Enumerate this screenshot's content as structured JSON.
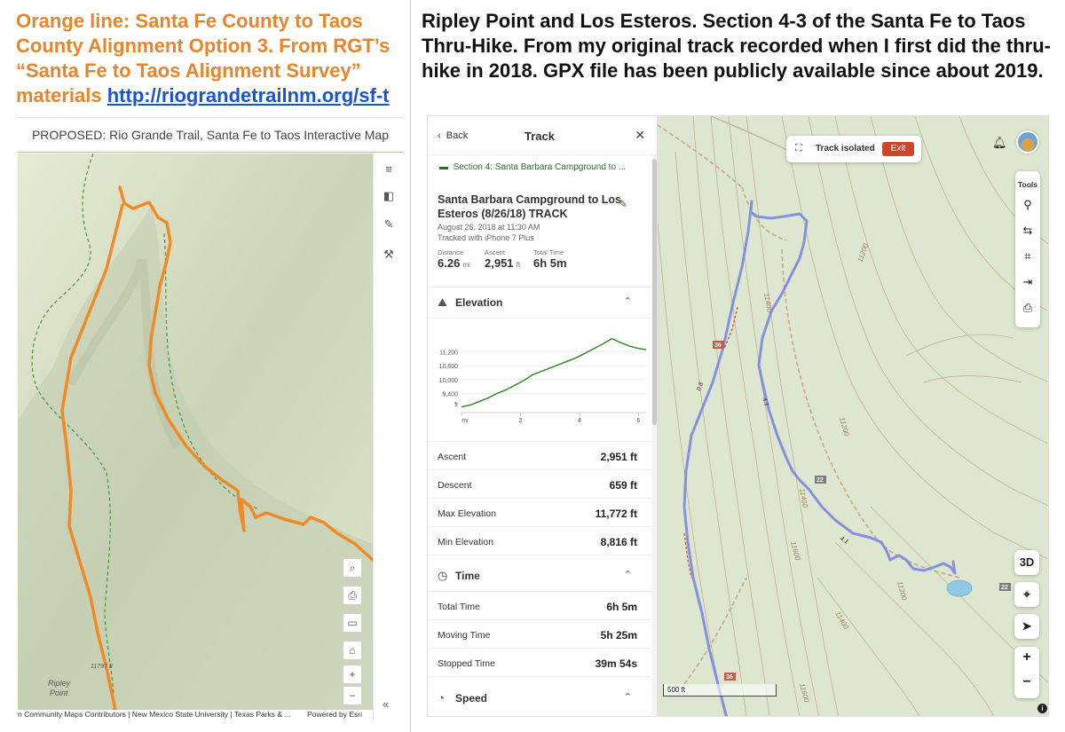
{
  "left_caption": {
    "text": "Orange line: Santa Fe County to Taos County Alignment Option 3. From RGT’s “Santa Fe to Taos Alignment Survey” materials ",
    "link": "http://riograndetrailnm.org/sf-t"
  },
  "right_caption": "Ripley Point and Los Esteros. Section 4-3 of the Santa Fe to Taos Thru-Hike. From my original track recorded when I first did the thru-hike in 2018. GPX file has been publicly available since about 2019.",
  "esri": {
    "title": "PROPOSED: Rio Grande Trail, Santa Fe to Taos Interactive Map",
    "attribution": "n Community Maps Contributors | New Mexico State University | Texas Parks & ...",
    "powered_by": "Powered by Esri",
    "collapse": "«",
    "labels": {
      "ripley": "Ripley",
      "point": "Point",
      "elev": "11797 ft"
    },
    "side_tools": [
      "sliders-icon",
      "layers-icon",
      "measure-icon",
      "wrench-icon"
    ],
    "map_buttons": [
      "search-icon",
      "print-icon",
      "monitor-icon",
      "home-icon",
      "zoom-in-icon",
      "zoom-out-icon"
    ],
    "map_button_glyphs": [
      "⌕",
      "⎙",
      "▭",
      "⌂",
      "+",
      "−"
    ],
    "track_color": "#f08a24"
  },
  "app": {
    "back": "Back",
    "title": "Track",
    "close": "✕",
    "section": "Section 4: Santa Barbara Campground to ...",
    "track_name": "Santa Barbara Campground to Los Esteros (8/26/18) TRACK",
    "date": "August 26, 2018 at 11:30 AM",
    "device": "Tracked with iPhone 7 Plus",
    "stats": [
      {
        "label": "Distance",
        "value": "6.26",
        "unit": "mi"
      },
      {
        "label": "Ascent",
        "value": "2,951",
        "unit": "ft"
      },
      {
        "label": "Total Time",
        "value": "6h 5m",
        "unit": ""
      }
    ],
    "elevation": {
      "heading": "Elevation",
      "rows": [
        {
          "k": "Ascent",
          "v": "2,951 ft"
        },
        {
          "k": "Descent",
          "v": "659 ft"
        },
        {
          "k": "Max Elevation",
          "v": "11,772 ft"
        },
        {
          "k": "Min Elevation",
          "v": "8,816 ft"
        }
      ]
    },
    "time": {
      "heading": "Time",
      "rows": [
        {
          "k": "Total Time",
          "v": "6h 5m"
        },
        {
          "k": "Moving Time",
          "v": "5h 25m"
        },
        {
          "k": "Stopped Time",
          "v": "39m 54s"
        }
      ]
    },
    "speed": {
      "heading": "Speed"
    },
    "map": {
      "track_isolated": "Track isolated",
      "exit": "Exit",
      "tools_label": "Tools",
      "tool_icons": [
        "pin-icon",
        "route-icon",
        "crop-icon",
        "import-icon",
        "print-icon"
      ],
      "tool_glyphs": [
        "⚲",
        "⇆",
        "⌗",
        "⇥",
        "⎙"
      ],
      "btn_3d": "3D",
      "zoom_in": "+",
      "zoom_out": "−",
      "scale": "500 ft",
      "info": "i",
      "contours": [
        "11200",
        "11400",
        "11400",
        "11200",
        "11600",
        "11600",
        "11400",
        "11200"
      ],
      "trail_numbers": [
        "36",
        "36",
        "22",
        "22"
      ],
      "mile_markers": [
        "0.8",
        "4.1",
        "4.1"
      ],
      "track_color": "#7b86e0"
    }
  },
  "chart_data": {
    "type": "area",
    "title": "",
    "xlabel": "mi",
    "ylabel": "ft",
    "x_ticks": [
      "mi",
      "2",
      "4",
      "6"
    ],
    "y_ticks": [
      "11,200",
      "10,600",
      "10,000",
      "9,400",
      "ft"
    ],
    "xlim": [
      0,
      6.26
    ],
    "ylim": [
      8800,
      11800
    ],
    "series": [
      {
        "x": [
          0,
          0.3,
          0.6,
          0.9,
          1.2,
          1.5,
          1.8,
          2.1,
          2.4,
          2.7,
          3.0,
          3.3,
          3.6,
          3.9,
          4.2,
          4.5,
          4.8,
          5.1,
          5.4,
          5.7,
          6.0,
          6.26
        ],
        "values": [
          8816,
          8900,
          9050,
          9200,
          9400,
          9550,
          9750,
          9950,
          10200,
          10350,
          10500,
          10650,
          10800,
          10950,
          11150,
          11350,
          11550,
          11772,
          11600,
          11450,
          11350,
          11300
        ]
      }
    ],
    "color": "#3a8a2a"
  }
}
